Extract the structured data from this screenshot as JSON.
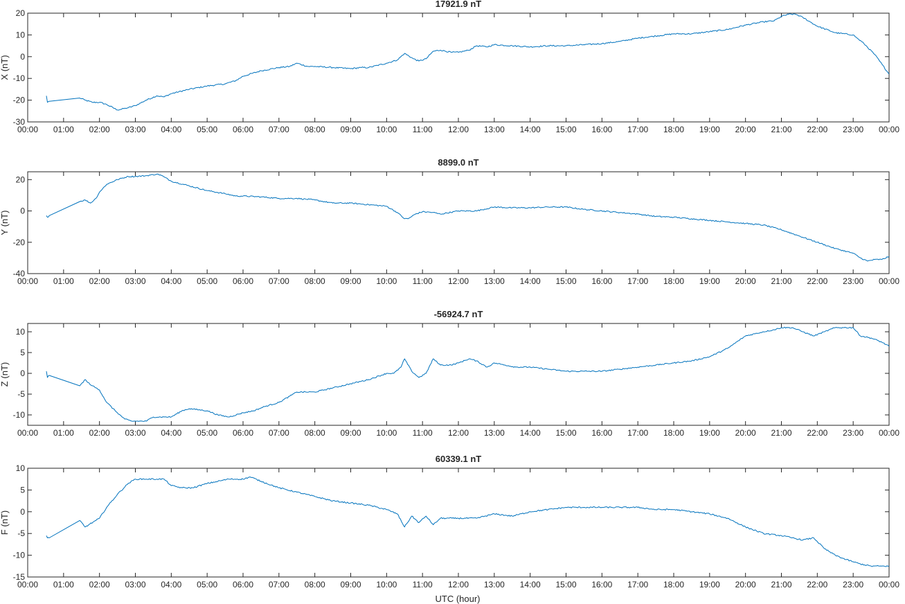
{
  "figure": {
    "xlabel": "UTC (hour)",
    "line_color": "#0072bd",
    "x_tick_labels": [
      "00:00",
      "01:00",
      "02:00",
      "03:00",
      "04:00",
      "05:00",
      "06:00",
      "07:00",
      "08:00",
      "09:00",
      "10:00",
      "11:00",
      "12:00",
      "13:00",
      "14:00",
      "15:00",
      "16:00",
      "17:00",
      "18:00",
      "19:00",
      "20:00",
      "21:00",
      "22:00",
      "23:00",
      "00:00"
    ]
  },
  "chart_data": [
    {
      "type": "line",
      "title": "17921.9 nT",
      "ylabel": "X (nT)",
      "xlim": [
        0,
        24
      ],
      "ylim": [
        -30,
        20
      ],
      "yticks": [
        -30,
        -20,
        -10,
        0,
        10,
        20
      ],
      "grid": false,
      "x": [
        0.52,
        0.55,
        0.6,
        1.45,
        1.6,
        1.8,
        2.0,
        2.2,
        2.5,
        2.8,
        3.0,
        3.3,
        3.6,
        3.8,
        4.0,
        4.5,
        5.0,
        5.5,
        5.8,
        6.0,
        6.5,
        7.0,
        7.3,
        7.5,
        7.8,
        8.0,
        8.5,
        9.0,
        9.3,
        9.5,
        10.0,
        10.3,
        10.5,
        10.75,
        10.9,
        11.1,
        11.3,
        11.5,
        11.8,
        12.0,
        12.3,
        12.5,
        12.8,
        13.0,
        13.5,
        14.0,
        14.5,
        15.0,
        15.5,
        16.0,
        16.5,
        17.0,
        17.5,
        18.0,
        18.5,
        19.0,
        19.5,
        20.0,
        20.5,
        20.8,
        21.0,
        21.2,
        21.4,
        21.6,
        21.8,
        22.0,
        22.5,
        23.0,
        23.3,
        23.6,
        24.0
      ],
      "y": [
        -18,
        -21,
        -20.5,
        -19,
        -20,
        -21,
        -21,
        -22,
        -24.5,
        -23.5,
        -22.5,
        -20,
        -18,
        -18.5,
        -17,
        -15,
        -13.5,
        -12.5,
        -11,
        -9,
        -6.5,
        -5,
        -4.5,
        -3,
        -4.5,
        -4.5,
        -5,
        -5.5,
        -5,
        -5,
        -3,
        -1.5,
        1.5,
        -1,
        -2,
        -1,
        2.5,
        3,
        2,
        2,
        3,
        5,
        4.5,
        5.5,
        5,
        4.5,
        5,
        5,
        5.5,
        6,
        7,
        8.5,
        9.5,
        10.5,
        10.5,
        11.5,
        12.5,
        14.5,
        16,
        16.5,
        18.5,
        19.5,
        19.5,
        18,
        16,
        14,
        11,
        10,
        6,
        1,
        -8
      ]
    },
    {
      "type": "line",
      "title": "8899.0 nT",
      "ylabel": "Y (nT)",
      "xlim": [
        0,
        24
      ],
      "ylim": [
        -40,
        25
      ],
      "yticks": [
        -40,
        -20,
        0,
        20
      ],
      "grid": false,
      "x": [
        0.52,
        0.55,
        0.6,
        1.45,
        1.6,
        1.75,
        1.9,
        2.0,
        2.2,
        2.5,
        2.8,
        3.0,
        3.3,
        3.6,
        3.7,
        4.0,
        4.5,
        5.0,
        5.5,
        5.8,
        6.0,
        6.5,
        7.0,
        7.5,
        8.0,
        8.5,
        9.0,
        9.5,
        10.0,
        10.3,
        10.5,
        10.6,
        10.8,
        11.0,
        11.3,
        11.5,
        12.0,
        12.5,
        13.0,
        13.5,
        14.0,
        14.5,
        15.0,
        15.5,
        16.0,
        16.5,
        17.0,
        17.5,
        18.0,
        18.5,
        19.0,
        19.5,
        20.0,
        20.5,
        21.0,
        21.5,
        22.0,
        22.5,
        23.0,
        23.2,
        23.4,
        23.6,
        23.8,
        24.0
      ],
      "y": [
        -3,
        -4,
        -3,
        6,
        7,
        5,
        8,
        12,
        17,
        20,
        22,
        22,
        22.5,
        23.5,
        23,
        19,
        16,
        13,
        11,
        9.5,
        9.5,
        9,
        8,
        8,
        7,
        5,
        5,
        4,
        3,
        -1,
        -5,
        -5,
        -2,
        -0.5,
        -1,
        -2,
        0,
        0,
        2.5,
        2,
        2,
        2.5,
        2.5,
        1,
        0,
        -1,
        -2,
        -3.5,
        -4,
        -5,
        -6,
        -7,
        -8,
        -9,
        -12,
        -16,
        -20,
        -24,
        -27,
        -30,
        -32,
        -31,
        -31,
        -29
      ]
    },
    {
      "type": "line",
      "title": "-56924.7 nT",
      "ylabel": "Z (nT)",
      "xlim": [
        0,
        24
      ],
      "ylim": [
        -12.5,
        12
      ],
      "yticks": [
        -10,
        -5,
        0,
        5,
        10
      ],
      "grid": false,
      "x": [
        0.52,
        0.55,
        0.6,
        1.45,
        1.6,
        1.65,
        1.8,
        2.0,
        2.2,
        2.5,
        2.7,
        2.9,
        3.0,
        3.3,
        3.5,
        3.8,
        4.0,
        4.3,
        4.5,
        5.0,
        5.3,
        5.6,
        6.0,
        6.3,
        6.6,
        7.0,
        7.3,
        7.5,
        8.0,
        8.5,
        9.0,
        9.5,
        10.0,
        10.2,
        10.4,
        10.5,
        10.7,
        10.9,
        11.1,
        11.3,
        11.5,
        11.8,
        12.0,
        12.3,
        12.5,
        12.8,
        13.0,
        13.3,
        13.6,
        14.0,
        14.5,
        15.0,
        15.5,
        16.0,
        16.5,
        17.0,
        17.5,
        18.0,
        18.5,
        19.0,
        19.5,
        20.0,
        20.5,
        20.8,
        21.0,
        21.3,
        21.6,
        21.9,
        22.2,
        22.5,
        22.8,
        23.0,
        23.2,
        23.5,
        23.8,
        24.0
      ],
      "y": [
        0.5,
        -1,
        -0.5,
        -3,
        -1.5,
        -2,
        -3,
        -4,
        -7,
        -9.5,
        -11,
        -11.5,
        -11.5,
        -11.5,
        -10.5,
        -10.5,
        -10.5,
        -9,
        -8.5,
        -9,
        -10,
        -10.5,
        -9.5,
        -9,
        -8,
        -7,
        -5.5,
        -4.5,
        -4.5,
        -3.5,
        -2.5,
        -1.5,
        0,
        0,
        1.5,
        3.5,
        0.5,
        -1,
        0,
        3.5,
        2,
        2,
        2.5,
        3.5,
        3,
        1.5,
        2.5,
        2,
        1.5,
        1.5,
        1,
        0.5,
        0.5,
        0.5,
        1,
        1.5,
        2,
        2.5,
        3,
        4,
        6,
        9,
        10,
        10.5,
        11,
        11,
        10,
        9,
        10,
        11,
        11,
        11,
        9,
        8.5,
        7.5,
        6.5
      ]
    },
    {
      "type": "line",
      "title": "60339.1 nT",
      "ylabel": "F (nT)",
      "xlim": [
        0,
        24
      ],
      "ylim": [
        -15,
        10
      ],
      "yticks": [
        -15,
        -10,
        -5,
        0,
        5,
        10
      ],
      "grid": false,
      "x": [
        0.52,
        0.55,
        0.6,
        1.45,
        1.6,
        1.7,
        1.9,
        2.0,
        2.2,
        2.5,
        2.8,
        3.0,
        3.3,
        3.6,
        3.8,
        4.0,
        4.3,
        4.6,
        5.0,
        5.3,
        5.6,
        6.0,
        6.2,
        6.5,
        7.0,
        7.5,
        8.0,
        8.5,
        9.0,
        9.5,
        10.0,
        10.3,
        10.5,
        10.7,
        10.9,
        11.1,
        11.3,
        11.5,
        12.0,
        12.5,
        13.0,
        13.5,
        14.0,
        14.5,
        15.0,
        15.5,
        16.0,
        16.5,
        17.0,
        17.5,
        18.0,
        18.5,
        19.0,
        19.5,
        20.0,
        20.5,
        21.0,
        21.3,
        21.6,
        21.9,
        22.2,
        22.5,
        22.8,
        23.0,
        23.2,
        23.5,
        23.8,
        24.0
      ],
      "y": [
        -5.5,
        -6,
        -6,
        -2,
        -3.5,
        -3,
        -2,
        -1.5,
        1,
        4,
        6.5,
        7.5,
        7.5,
        7.5,
        7.5,
        6,
        5.5,
        5.5,
        6.5,
        7,
        7.5,
        7.5,
        8,
        7,
        5.5,
        4.5,
        3.5,
        2.5,
        2,
        1.5,
        0.5,
        -0.5,
        -3.5,
        -1,
        -2.5,
        -1,
        -3,
        -1.5,
        -1.5,
        -1.5,
        -0.5,
        -1,
        0,
        0.5,
        1,
        1,
        1,
        1,
        1,
        0.5,
        0.5,
        0,
        -0.5,
        -1.5,
        -3.5,
        -5,
        -5.5,
        -6,
        -6.5,
        -6,
        -8.5,
        -10,
        -11,
        -11.5,
        -12,
        -12.5,
        -12.5,
        -12.5
      ]
    }
  ]
}
